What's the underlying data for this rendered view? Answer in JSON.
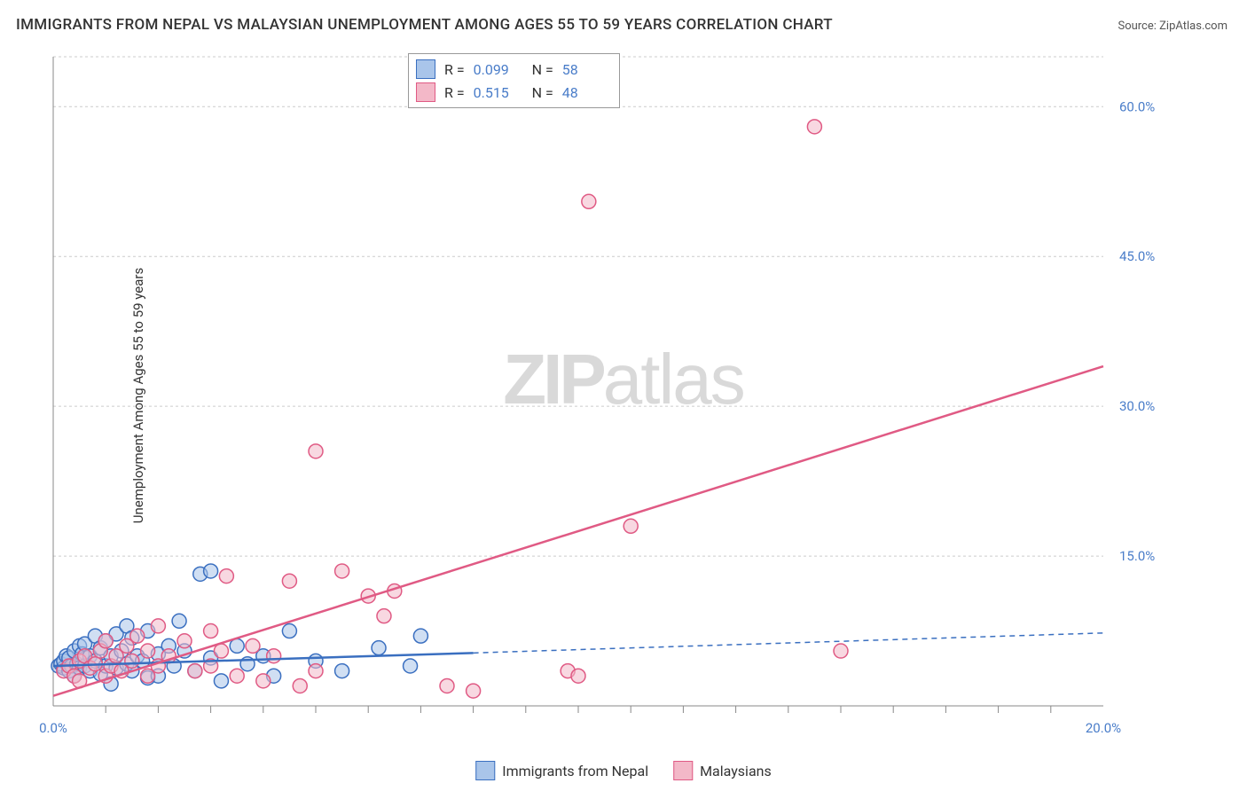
{
  "title": "IMMIGRANTS FROM NEPAL VS MALAYSIAN UNEMPLOYMENT AMONG AGES 55 TO 59 YEARS CORRELATION CHART",
  "source": "Source: ZipAtlas.com",
  "ylabel": "Unemployment Among Ages 55 to 59 years",
  "watermark_a": "ZIP",
  "watermark_b": "atlas",
  "chart": {
    "type": "scatter",
    "background": "#ffffff",
    "grid_color": "#cccccc",
    "axis_color": "#888888",
    "xlim": [
      0,
      20
    ],
    "ylim": [
      0,
      65
    ],
    "xtick_labels": [
      "0.0%",
      "20.0%"
    ],
    "xtick_positions": [
      0,
      20
    ],
    "xtick_minor": [
      1,
      2,
      3,
      4,
      5,
      6,
      7,
      8,
      9,
      10,
      11,
      12,
      13,
      14,
      15,
      16,
      17,
      18,
      19
    ],
    "ytick_labels": [
      "15.0%",
      "30.0%",
      "45.0%",
      "60.0%"
    ],
    "ytick_positions": [
      15,
      30,
      45,
      60
    ],
    "marker_radius": 8,
    "marker_stroke_width": 1.5,
    "trend_line_width": 2.5,
    "series": [
      {
        "name": "Immigrants from Nepal",
        "fill": "#a9c5ea",
        "stroke": "#3a6fc0",
        "fill_opacity": 0.55,
        "R": "0.099",
        "N": "58",
        "trend": {
          "x1": 0,
          "y1": 4.0,
          "x2": 8.0,
          "y2": 5.3,
          "dash_x2": 20,
          "dash_y2": 7.3
        },
        "points": [
          [
            0.1,
            4.0
          ],
          [
            0.15,
            4.2
          ],
          [
            0.2,
            3.8
          ],
          [
            0.2,
            4.5
          ],
          [
            0.25,
            5.0
          ],
          [
            0.3,
            3.5
          ],
          [
            0.3,
            4.8
          ],
          [
            0.35,
            4.0
          ],
          [
            0.4,
            5.5
          ],
          [
            0.4,
            3.0
          ],
          [
            0.45,
            4.2
          ],
          [
            0.5,
            6.0
          ],
          [
            0.5,
            3.8
          ],
          [
            0.55,
            5.2
          ],
          [
            0.6,
            4.0
          ],
          [
            0.6,
            6.2
          ],
          [
            0.7,
            3.5
          ],
          [
            0.7,
            5.0
          ],
          [
            0.8,
            4.5
          ],
          [
            0.8,
            7.0
          ],
          [
            0.9,
            3.2
          ],
          [
            0.9,
            5.8
          ],
          [
            1.0,
            4.0
          ],
          [
            1.0,
            6.5
          ],
          [
            1.1,
            5.0
          ],
          [
            1.1,
            2.2
          ],
          [
            1.2,
            7.2
          ],
          [
            1.2,
            3.8
          ],
          [
            1.3,
            5.5
          ],
          [
            1.4,
            4.2
          ],
          [
            1.4,
            8.0
          ],
          [
            1.5,
            3.5
          ],
          [
            1.5,
            6.8
          ],
          [
            1.6,
            5.0
          ],
          [
            1.7,
            4.5
          ],
          [
            1.8,
            2.8
          ],
          [
            1.8,
            7.5
          ],
          [
            2.0,
            5.2
          ],
          [
            2.0,
            3.0
          ],
          [
            2.2,
            6.0
          ],
          [
            2.3,
            4.0
          ],
          [
            2.4,
            8.5
          ],
          [
            2.5,
            5.5
          ],
          [
            2.7,
            3.5
          ],
          [
            2.8,
            13.2
          ],
          [
            3.0,
            4.8
          ],
          [
            3.0,
            13.5
          ],
          [
            3.2,
            2.5
          ],
          [
            3.5,
            6.0
          ],
          [
            3.7,
            4.2
          ],
          [
            4.0,
            5.0
          ],
          [
            4.2,
            3.0
          ],
          [
            4.5,
            7.5
          ],
          [
            5.0,
            4.5
          ],
          [
            5.5,
            3.5
          ],
          [
            6.2,
            5.8
          ],
          [
            6.8,
            4.0
          ],
          [
            7.0,
            7.0
          ]
        ]
      },
      {
        "name": "Malaysians",
        "fill": "#f3b8c8",
        "stroke": "#e05a84",
        "fill_opacity": 0.55,
        "R": "0.515",
        "N": "48",
        "trend": {
          "x1": 0,
          "y1": 1.0,
          "x2": 20,
          "y2": 34.0
        },
        "points": [
          [
            0.2,
            3.5
          ],
          [
            0.3,
            4.0
          ],
          [
            0.4,
            3.0
          ],
          [
            0.5,
            4.5
          ],
          [
            0.5,
            2.5
          ],
          [
            0.6,
            5.0
          ],
          [
            0.7,
            3.8
          ],
          [
            0.8,
            4.2
          ],
          [
            0.9,
            5.5
          ],
          [
            1.0,
            3.0
          ],
          [
            1.0,
            6.5
          ],
          [
            1.1,
            4.0
          ],
          [
            1.2,
            5.0
          ],
          [
            1.3,
            3.5
          ],
          [
            1.4,
            6.0
          ],
          [
            1.5,
            4.5
          ],
          [
            1.6,
            7.0
          ],
          [
            1.8,
            5.5
          ],
          [
            1.8,
            3.0
          ],
          [
            2.0,
            4.0
          ],
          [
            2.0,
            8.0
          ],
          [
            2.2,
            5.0
          ],
          [
            2.5,
            6.5
          ],
          [
            2.7,
            3.5
          ],
          [
            3.0,
            7.5
          ],
          [
            3.0,
            4.0
          ],
          [
            3.2,
            5.5
          ],
          [
            3.3,
            13.0
          ],
          [
            3.5,
            3.0
          ],
          [
            3.8,
            6.0
          ],
          [
            4.0,
            2.5
          ],
          [
            4.2,
            5.0
          ],
          [
            4.5,
            12.5
          ],
          [
            4.7,
            2.0
          ],
          [
            5.0,
            25.5
          ],
          [
            5.0,
            3.5
          ],
          [
            5.5,
            13.5
          ],
          [
            6.0,
            11.0
          ],
          [
            6.3,
            9.0
          ],
          [
            6.5,
            11.5
          ],
          [
            7.5,
            2.0
          ],
          [
            8.0,
            1.5
          ],
          [
            9.8,
            3.5
          ],
          [
            10.0,
            3.0
          ],
          [
            10.2,
            50.5
          ],
          [
            11.0,
            18.0
          ],
          [
            14.5,
            58.0
          ],
          [
            15.0,
            5.5
          ]
        ]
      }
    ]
  },
  "legend": {
    "items": [
      {
        "label": "Immigrants from Nepal",
        "fill": "#a9c5ea",
        "stroke": "#3a6fc0"
      },
      {
        "label": "Malaysians",
        "fill": "#f3b8c8",
        "stroke": "#e05a84"
      }
    ]
  }
}
